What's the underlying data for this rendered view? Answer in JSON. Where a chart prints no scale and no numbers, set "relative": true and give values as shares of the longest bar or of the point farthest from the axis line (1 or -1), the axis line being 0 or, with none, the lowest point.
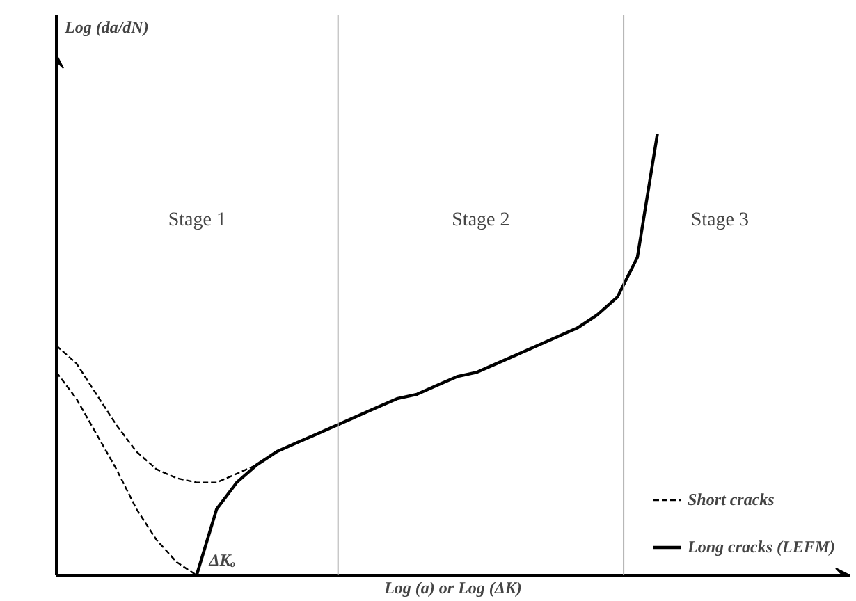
{
  "chart_data": {
    "type": "line",
    "relative": true,
    "xlabel": "Log (a) or Log (ΔK)",
    "legend": "bottom right",
    "marker": "none",
    "categories": [
      null,
      null,
      null,
      null,
      null,
      null,
      null,
      null,
      null,
      null,
      null,
      null,
      null,
      null,
      null,
      null,
      null,
      null,
      null,
      null,
      null,
      null,
      null,
      null,
      null,
      null,
      null,
      null,
      null,
      null,
      null
    ],
    "series": [
      {
        "name": "Short cracks",
        "color": "#000000",
        "line_style": "dashed",
        "values": [
          0.52,
          0.48,
          0.41,
          0.34,
          0.28,
          0.24,
          0.22,
          0.21,
          0.21,
          0.23,
          0.25,
          null,
          null,
          null,
          null,
          null,
          null,
          null,
          null,
          null,
          null,
          null,
          null,
          null,
          null,
          null,
          null,
          null,
          null,
          null,
          null
        ]
      },
      {
        "color": "#000000",
        "line_style": "dashed",
        "values": [
          0.46,
          0.4,
          0.32,
          0.24,
          0.15,
          0.08,
          0.03,
          0,
          null,
          null,
          null,
          null,
          null,
          null,
          null,
          null,
          null,
          null,
          null,
          null,
          null,
          null,
          null,
          null,
          null,
          null,
          null,
          null,
          null,
          null,
          null
        ]
      },
      {
        "name": "Long cracks (LEFM)",
        "color": "#000000",
        "line_style": "solid",
        "values": [
          null,
          null,
          null,
          null,
          null,
          null,
          null,
          0,
          0.15,
          0.21,
          0.25,
          0.28,
          0.3,
          0.32,
          0.34,
          0.36,
          0.38,
          0.4,
          0.41,
          0.43,
          0.45,
          0.46,
          0.48,
          0.5,
          0.52,
          0.54,
          0.56,
          0.59,
          0.63,
          0.72,
          1.0
        ]
      }
    ],
    "annotations": [
      "Stage 1",
      "Stage 2",
      "Stage 3",
      "ΔKₒ",
      "Log (da/dN)"
    ]
  }
}
